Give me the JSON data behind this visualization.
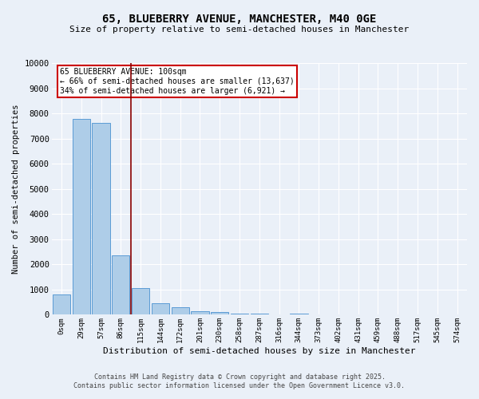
{
  "title_line1": "65, BLUEBERRY AVENUE, MANCHESTER, M40 0GE",
  "title_line2": "Size of property relative to semi-detached houses in Manchester",
  "xlabel": "Distribution of semi-detached houses by size in Manchester",
  "ylabel": "Number of semi-detached properties",
  "bar_labels": [
    "0sqm",
    "29sqm",
    "57sqm",
    "86sqm",
    "115sqm",
    "144sqm",
    "172sqm",
    "201sqm",
    "230sqm",
    "258sqm",
    "287sqm",
    "316sqm",
    "344sqm",
    "373sqm",
    "402sqm",
    "431sqm",
    "459sqm",
    "488sqm",
    "517sqm",
    "545sqm",
    "574sqm"
  ],
  "bar_values": [
    820,
    7780,
    7620,
    2370,
    1050,
    460,
    290,
    155,
    100,
    60,
    30,
    15,
    55,
    0,
    0,
    0,
    0,
    0,
    0,
    0,
    0
  ],
  "bar_color": "#aecde8",
  "bar_edge_color": "#5b9bd5",
  "bg_color": "#eaf0f8",
  "grid_color": "#ffffff",
  "vline_x": 3.5,
  "vline_color": "#8b0000",
  "annotation_title": "65 BLUEBERRY AVENUE: 100sqm",
  "annotation_line2": "← 66% of semi-detached houses are smaller (13,637)",
  "annotation_line3": "34% of semi-detached houses are larger (6,921) →",
  "annotation_box_color": "#cc0000",
  "ylim": [
    0,
    10000
  ],
  "yticks": [
    0,
    1000,
    2000,
    3000,
    4000,
    5000,
    6000,
    7000,
    8000,
    9000,
    10000
  ],
  "footer_line1": "Contains HM Land Registry data © Crown copyright and database right 2025.",
  "footer_line2": "Contains public sector information licensed under the Open Government Licence v3.0."
}
